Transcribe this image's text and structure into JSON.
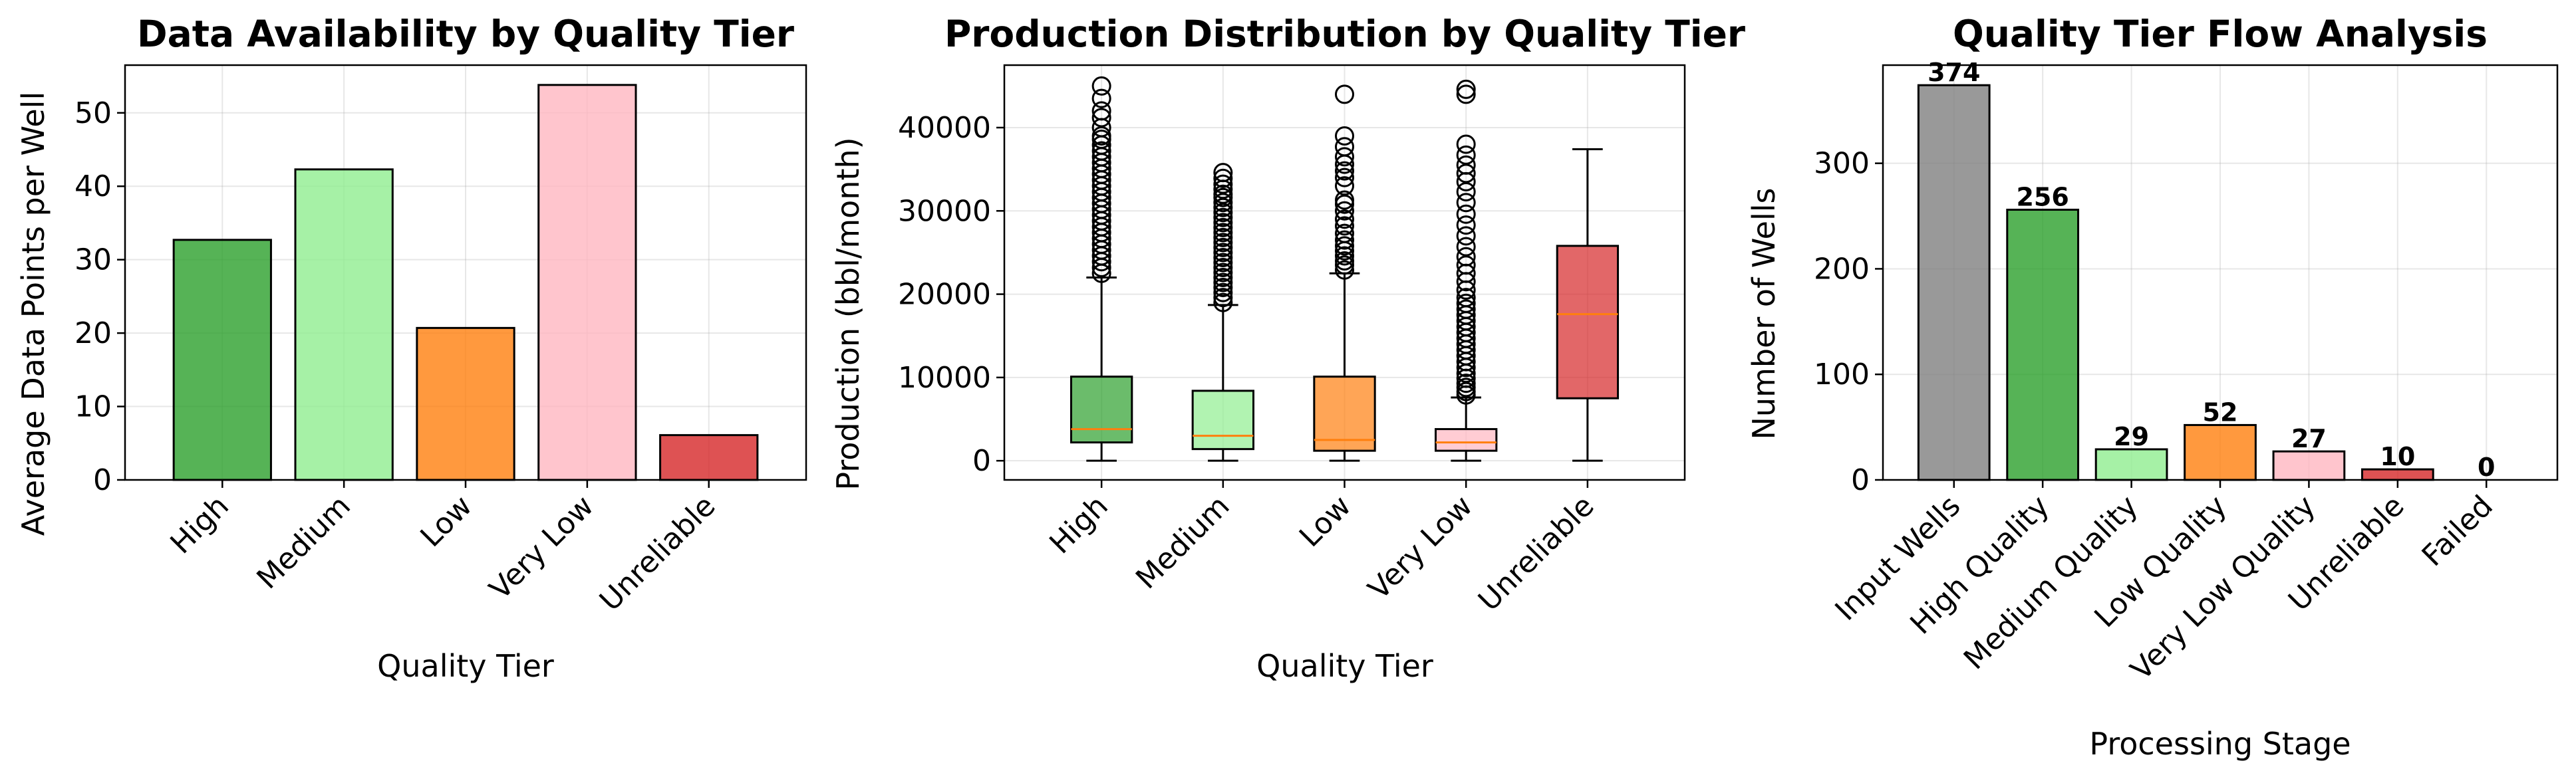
{
  "figure": {
    "background": "#ffffff"
  },
  "chart_data": [
    {
      "type": "bar",
      "title": "Data Availability by Quality Tier",
      "xlabel": "Quality Tier",
      "ylabel": "Average Data Points per Well",
      "categories": [
        "High",
        "Medium",
        "Low",
        "Very Low",
        "Unreliable"
      ],
      "values": [
        32.7,
        42.3,
        20.7,
        53.8,
        6.1
      ],
      "colors": [
        "#2ca02c",
        "#90ee90",
        "#ff7f0e",
        "#ffb6c1",
        "#d62728"
      ],
      "ylim": [
        0,
        56.5
      ],
      "yticks": [
        0,
        10,
        20,
        30,
        40,
        50
      ],
      "xtick_rotation": 45,
      "grid": true
    },
    {
      "type": "box",
      "title": "Production Distribution by Quality Tier",
      "xlabel": "Quality Tier",
      "ylabel": "Production (bbl/month)",
      "categories": [
        "High",
        "Medium",
        "Low",
        "Very Low",
        "Unreliable"
      ],
      "colors": [
        "#2ca02c",
        "#90ee90",
        "#ff7f0e",
        "#ffb6c1",
        "#d62728"
      ],
      "median_color": "#ff7f0e",
      "ylim": [
        -2300,
        47500
      ],
      "yticks": [
        0,
        10000,
        20000,
        30000,
        40000
      ],
      "xtick_rotation": 45,
      "grid": true,
      "boxes": [
        {
          "whislo": 0,
          "q1": 2200,
          "med": 3800,
          "q3": 10100,
          "whishi": 22000,
          "fliers": [
            22500,
            23200,
            23900,
            24600,
            25300,
            26000,
            26700,
            27400,
            28100,
            28800,
            29500,
            30200,
            30900,
            31600,
            32300,
            33000,
            33700,
            34400,
            35100,
            35800,
            36500,
            37200,
            37900,
            38600,
            39000,
            40000,
            41200,
            42000,
            43500,
            45000
          ]
        },
        {
          "whislo": 0,
          "q1": 1400,
          "med": 3000,
          "q3": 8400,
          "whishi": 18700,
          "fliers": [
            19000,
            19600,
            20200,
            20800,
            21400,
            22000,
            22600,
            23200,
            23800,
            24400,
            25000,
            25600,
            26200,
            26800,
            27400,
            28000,
            28600,
            29200,
            29800,
            30400,
            31000,
            31600,
            32000,
            32600,
            33200,
            33900,
            34600
          ]
        },
        {
          "whislo": 0,
          "q1": 1200,
          "med": 2500,
          "q3": 10100,
          "whishi": 22500,
          "fliers": [
            22900,
            23500,
            24000,
            24600,
            25200,
            25800,
            26500,
            27300,
            28200,
            29000,
            30000,
            30800,
            31300,
            33000,
            34000,
            34800,
            35600,
            36500,
            37700,
            39000,
            44000
          ]
        },
        {
          "whislo": 0,
          "q1": 1200,
          "med": 2200,
          "q3": 3800,
          "whishi": 7600,
          "fliers": [
            7900,
            8300,
            8800,
            9300,
            9900,
            10500,
            11200,
            11900,
            12600,
            13300,
            14000,
            14700,
            15400,
            16100,
            16800,
            17500,
            18200,
            18900,
            19600,
            20500,
            21500,
            22500,
            23500,
            24500,
            25700,
            27000,
            28300,
            29600,
            31000,
            32300,
            33500,
            34500,
            35500,
            36700,
            38000,
            44000,
            44600
          ]
        },
        {
          "whislo": 0,
          "q1": 7500,
          "med": 17600,
          "q3": 25800,
          "whishi": 37400,
          "fliers": []
        }
      ]
    },
    {
      "type": "bar",
      "title": "Quality Tier Flow Analysis",
      "xlabel": "Processing Stage",
      "ylabel": "Number of Wells",
      "categories": [
        "Input Wells",
        "High Quality",
        "Medium Quality",
        "Low Quality",
        "Very Low Quality",
        "Unreliable",
        "Failed"
      ],
      "values": [
        374,
        256,
        29,
        52,
        27,
        10,
        0
      ],
      "data_labels": [
        "374",
        "256",
        "29",
        "52",
        "27",
        "10",
        "0"
      ],
      "colors": [
        "#808080",
        "#2ca02c",
        "#90ee90",
        "#ff7f0e",
        "#ffb6c1",
        "#d62728",
        "#8b0000"
      ],
      "ylim": [
        0,
        393
      ],
      "yticks": [
        0,
        100,
        200,
        300
      ],
      "xtick_rotation": 45,
      "grid": true
    }
  ]
}
